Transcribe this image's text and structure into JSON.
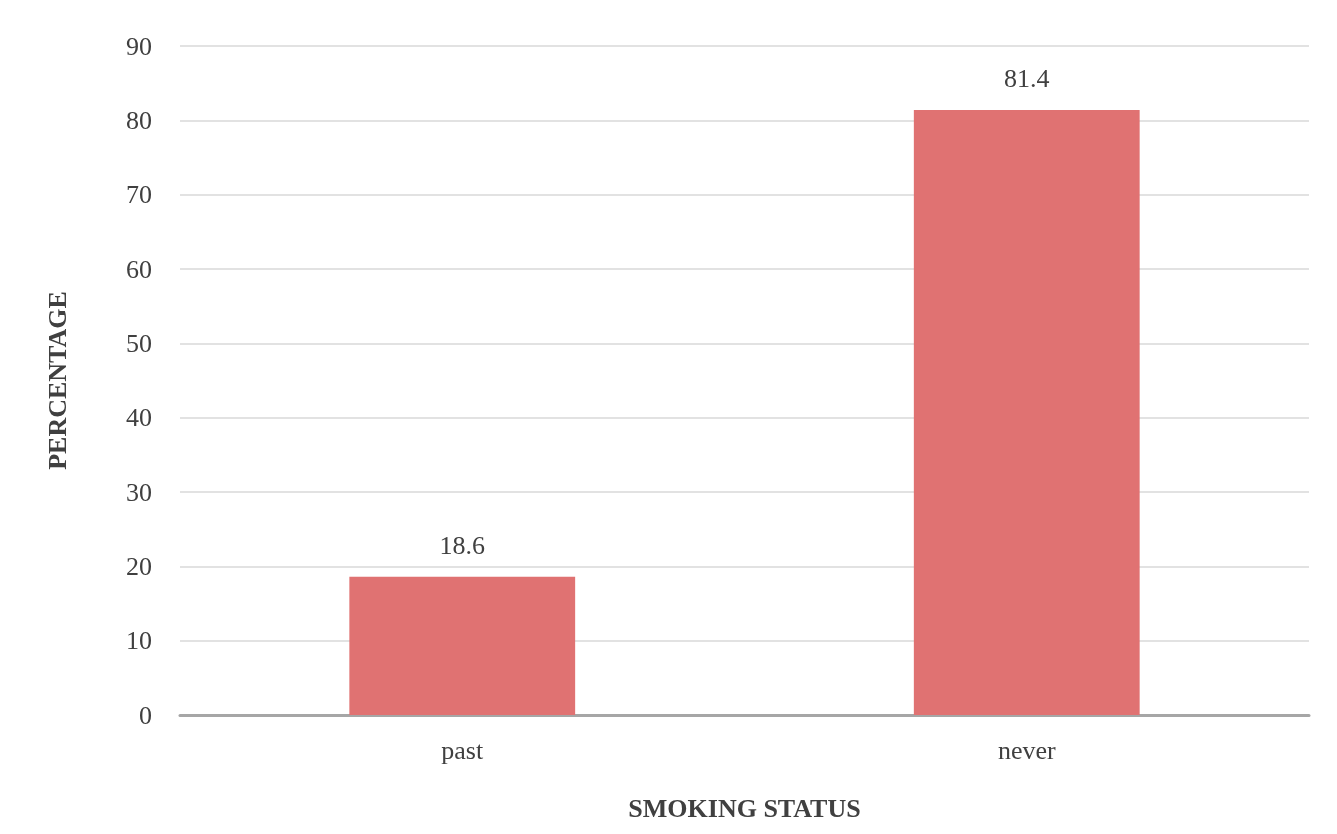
{
  "chart_data": {
    "type": "bar",
    "xlabel": "SMOKING STATUS",
    "ylabel": "PERCENTAGE",
    "categories": [
      "past",
      "never"
    ],
    "values": [
      18.6,
      81.4
    ],
    "color": "#e07272",
    "ylim": [
      0,
      90
    ],
    "yticks": [
      0,
      10,
      20,
      30,
      40,
      50,
      60,
      70,
      80,
      90
    ],
    "grid": "y",
    "data_labels": true
  }
}
